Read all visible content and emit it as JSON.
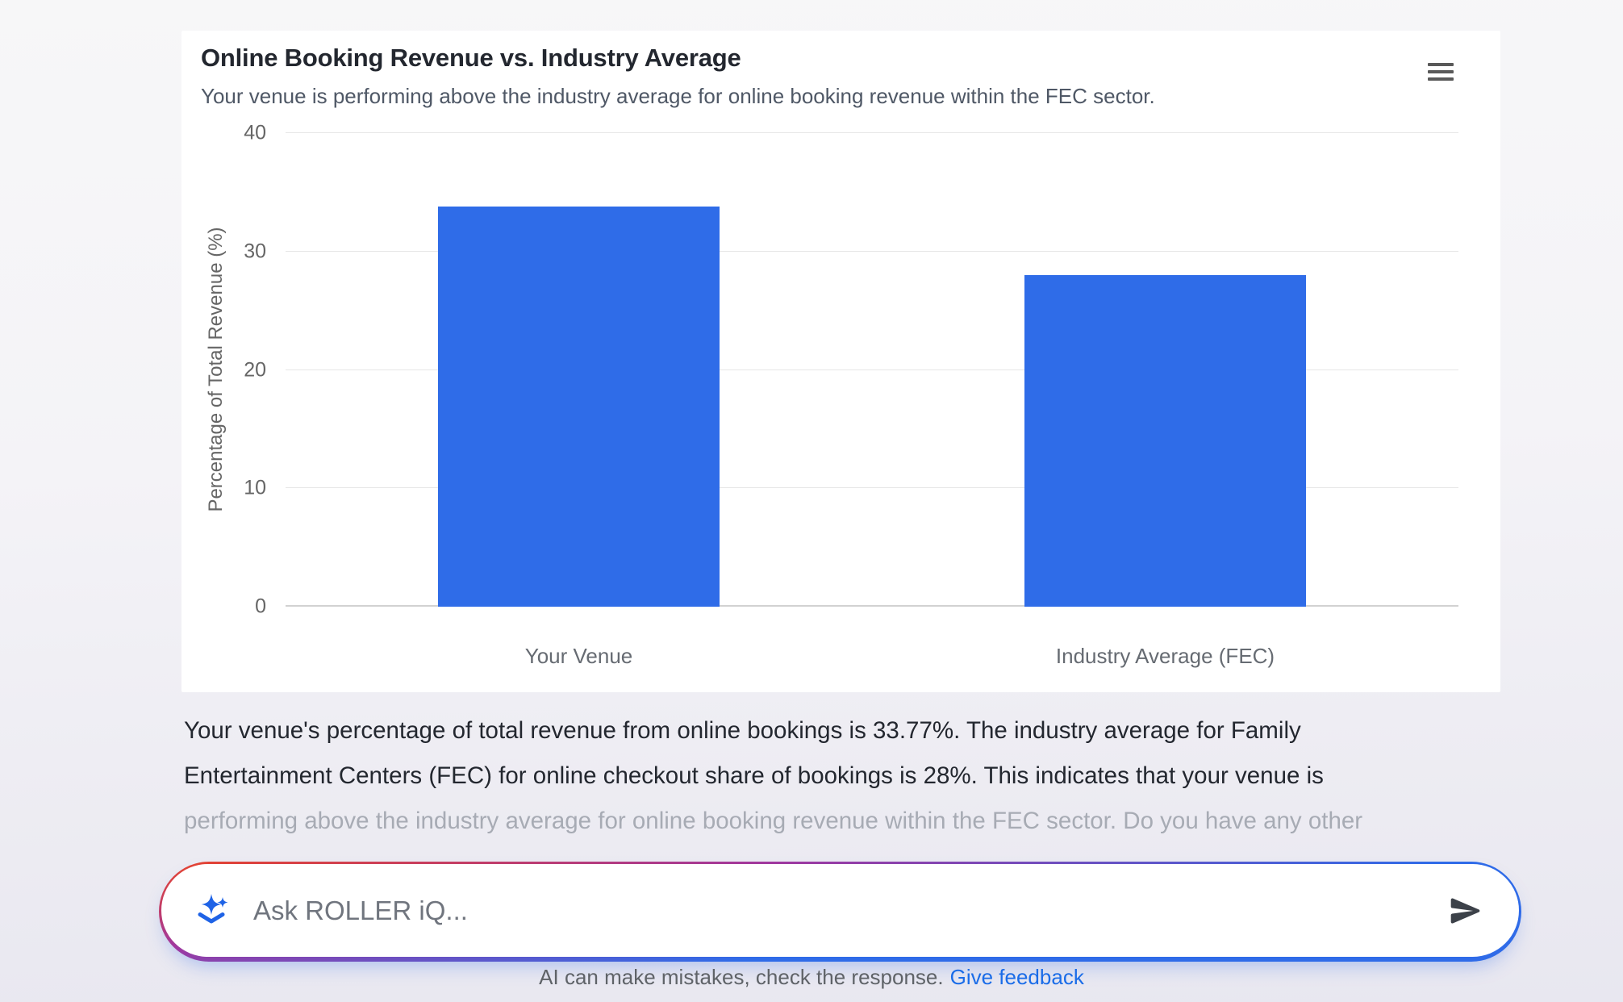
{
  "card": {
    "title": "Online Booking Revenue vs. Industry Average",
    "subtitle": "Your venue is performing above the industry average for online booking revenue within the FEC sector.",
    "menu_icon": "hamburger-menu"
  },
  "chart_data": {
    "type": "bar",
    "title": "Online Booking Revenue vs. Industry Average",
    "subtitle": "Your venue is performing above the industry average for online booking revenue within the FEC sector.",
    "categories": [
      "Your Venue",
      "Industry Average (FEC)"
    ],
    "values": [
      33.77,
      28
    ],
    "series_color": "#2f6ce8",
    "xlabel": "",
    "ylabel": "Percentage of Total Revenue (%)",
    "ylim": [
      0,
      40
    ],
    "yticks": [
      0,
      10,
      20,
      30,
      40
    ],
    "grid": true,
    "legend": false
  },
  "analysis": {
    "lines": [
      "Your venue's percentage of total revenue from online bookings is 33.77%. The industry average for Family",
      "Entertainment Centers (FEC) for online checkout share of bookings is 28%. This indicates that your venue is",
      "performing above the industry average for online booking revenue within the FEC sector. Do you have any other"
    ]
  },
  "chat_input": {
    "placeholder": "Ask ROLLER iQ...",
    "value": "",
    "sparkle_icon": "ai-sparkle",
    "send_icon": "send-arrow",
    "border_gradient": [
      "#e8432a",
      "#a0389f",
      "#2f6be8"
    ]
  },
  "footer": {
    "disclaimer": "AI can make mistakes, check the response.",
    "feedback_link": "Give feedback"
  }
}
